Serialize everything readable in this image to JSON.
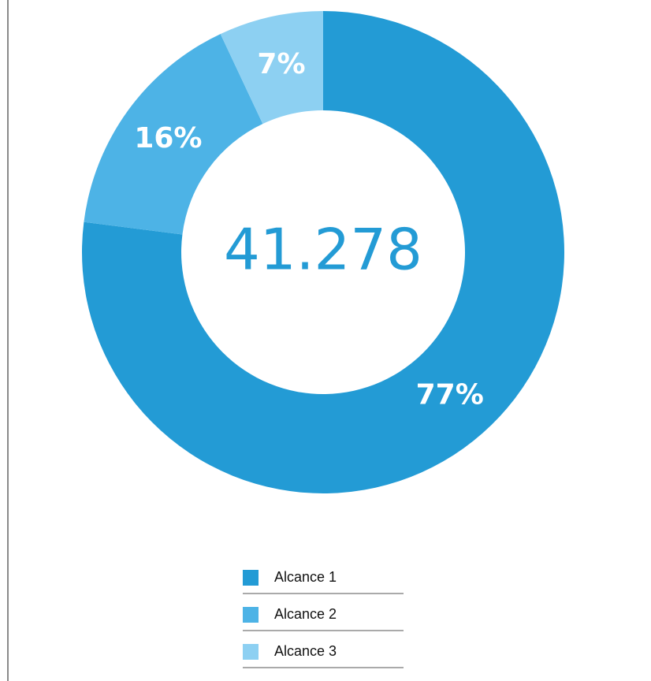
{
  "chart_data": {
    "type": "donut",
    "categories": [
      "Alcance 1",
      "Alcance 2",
      "Alcance 3"
    ],
    "values": [
      77,
      16,
      7
    ],
    "value_labels": [
      "77%",
      "16%",
      "7%"
    ],
    "colors": [
      "#239bd5",
      "#4db3e6",
      "#8dd0f2"
    ],
    "center_label": "41.278"
  }
}
